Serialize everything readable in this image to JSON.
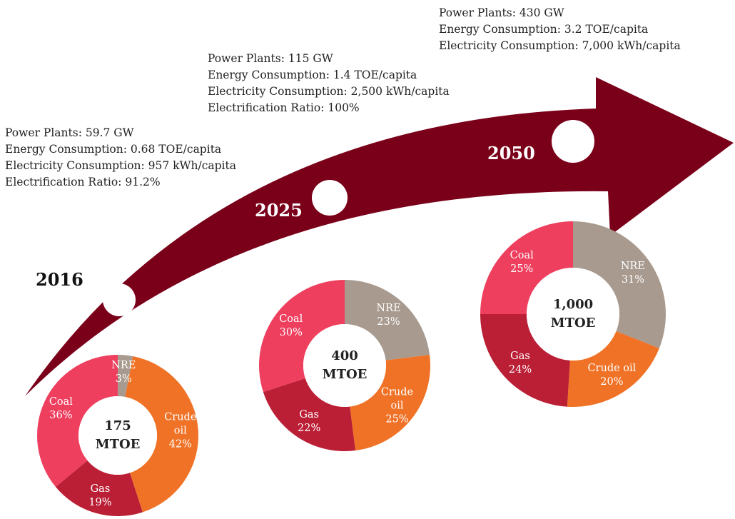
{
  "chart_data": [
    {
      "type": "pie",
      "title": "175 MTOE",
      "categories": [
        "NRE",
        "Crude oil",
        "Gas",
        "Coal"
      ],
      "values": [
        3,
        42,
        19,
        36
      ],
      "value_labels": [
        "3%",
        "42%",
        "19%",
        "36%"
      ],
      "colors": [
        "#a89a8e",
        "#f07226",
        "#bb1f35",
        "#ee3f5f"
      ]
    },
    {
      "type": "pie",
      "title": "400 MTOE",
      "categories": [
        "NRE",
        "Crude oil",
        "Gas",
        "Coal"
      ],
      "values": [
        23,
        25,
        22,
        30
      ],
      "value_labels": [
        "23%",
        "25%",
        "22%",
        "30%"
      ],
      "colors": [
        "#a89a8e",
        "#f07226",
        "#bb1f35",
        "#ee3f5f"
      ]
    },
    {
      "type": "pie",
      "title": "1,000 MTOE",
      "categories": [
        "NRE",
        "Crude oil",
        "Gas",
        "Coal"
      ],
      "values": [
        31,
        20,
        24,
        25
      ],
      "value_labels": [
        "31%",
        "20%",
        "24%",
        "25%"
      ],
      "colors": [
        "#a89a8e",
        "#f07226",
        "#bb1f35",
        "#ee3f5f"
      ]
    }
  ],
  "timeline": [
    {
      "year": "2016",
      "notes": [
        "Power Plants: 59.7 GW",
        "Energy Consumption: 0.68 TOE/capita",
        "Electricity Consumption: 957 kWh/capita",
        "Electrification Ratio: 91.2%"
      ]
    },
    {
      "year": "2025",
      "notes": [
        "Power Plants: 115 GW",
        "Energy Consumption: 1.4 TOE/capita",
        "Electricity Consumption: 2,500 kWh/capita",
        "Electrification Ratio: 100%"
      ]
    },
    {
      "year": "2050",
      "notes": [
        "Power Plants: 430 GW",
        "Energy Consumption: 3.2 TOE/capita",
        "Electricity Consumption: 7,000 kWh/capita"
      ]
    }
  ]
}
